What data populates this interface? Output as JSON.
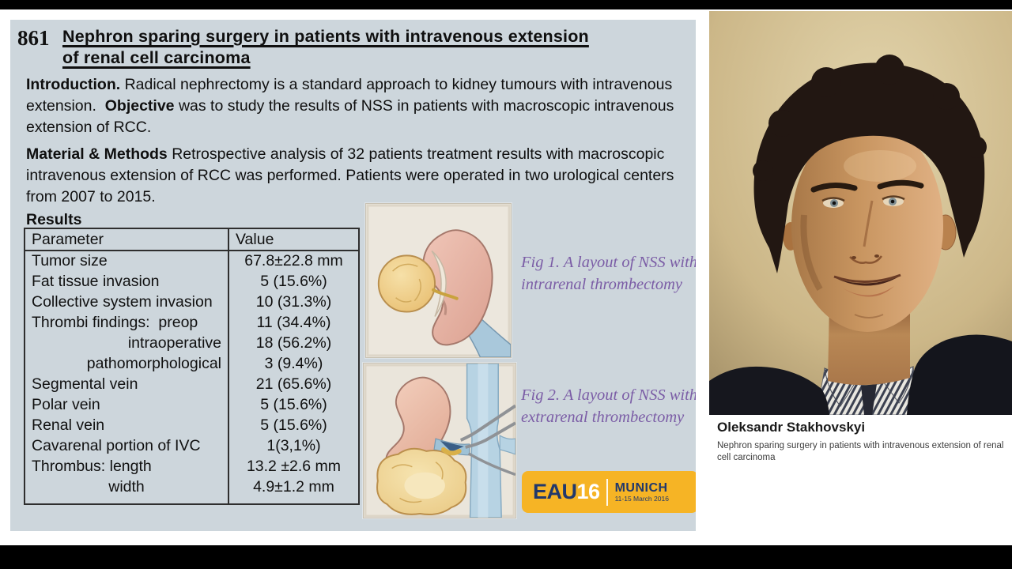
{
  "slide": {
    "abstract_number": "861",
    "title_line1": "Nephron sparing surgery in patients with intravenous extension",
    "title_line2": "of renal cell carcinoma",
    "sections": {
      "introduction_label": "Introduction.",
      "introduction_text": " Radical nephrectomy is a standard approach to kidney tumours with intravenous extension.  ",
      "objective_label": "Objective",
      "objective_text": " was to study the results of NSS in patients with macroscopic intravenous extension of RCC.",
      "methods_label": "Material & Methods",
      "methods_text": " Retrospective analysis of 32 patients treatment results with macroscopic intravenous extension of RCC was performed. Patients were operated in two urological centers from 2007 to 2015.",
      "results_label": "Results"
    },
    "table": {
      "headers": [
        "Parameter",
        "Value"
      ],
      "rows": [
        {
          "parameter": "Tumor size",
          "value": "67.8±22.8 mm",
          "align": "left"
        },
        {
          "parameter": "Fat tissue invasion",
          "value": "5 (15.6%)",
          "align": "left"
        },
        {
          "parameter": "Collective system invasion",
          "value": "10 (31.3%)",
          "align": "left"
        },
        {
          "parameter": "Thrombi findings:  preop",
          "value": "11 (34.4%)",
          "align": "left"
        },
        {
          "parameter": "intraoperative",
          "value": "18 (56.2%)",
          "align": "right"
        },
        {
          "parameter": "pathomorphological",
          "value": "3 (9.4%)",
          "align": "right"
        },
        {
          "parameter": "Segmental vein",
          "value": "21 (65.6%)",
          "align": "left"
        },
        {
          "parameter": "Polar vein",
          "value": "5 (15.6%)",
          "align": "left"
        },
        {
          "parameter": "Renal vein",
          "value": "5 (15.6%)",
          "align": "left"
        },
        {
          "parameter": "Cavarenal portion of IVC",
          "value": "1(3,1%)",
          "align": "left"
        },
        {
          "parameter": "Thrombus: length",
          "value": "13.2 ±2.6 mm",
          "align": "left"
        },
        {
          "parameter": "width",
          "value": "4.9±1.2 mm",
          "align": "center"
        }
      ]
    },
    "figures": [
      {
        "caption": "Fig 1. A layout of NSS with intrarenal thrombectomy"
      },
      {
        "caption": "Fig 2. A layout of NSS with extrarenal thrombectomy"
      }
    ],
    "logo": {
      "brand": "EAU",
      "year": "16",
      "city": "MUNICH",
      "dates": "11-15 March 2016"
    }
  },
  "speaker": {
    "name": "Oleksandr Stakhovskyi",
    "talk_title": "Nephron sparing surgery in patients with intravenous extension of renal cell carcinoma"
  },
  "colors": {
    "slide_background": "#cdd6dc",
    "caption_purple": "#7b5da6",
    "logo_orange": "#f6b425",
    "logo_navy": "#21386b",
    "letterbox_black": "#000000"
  }
}
